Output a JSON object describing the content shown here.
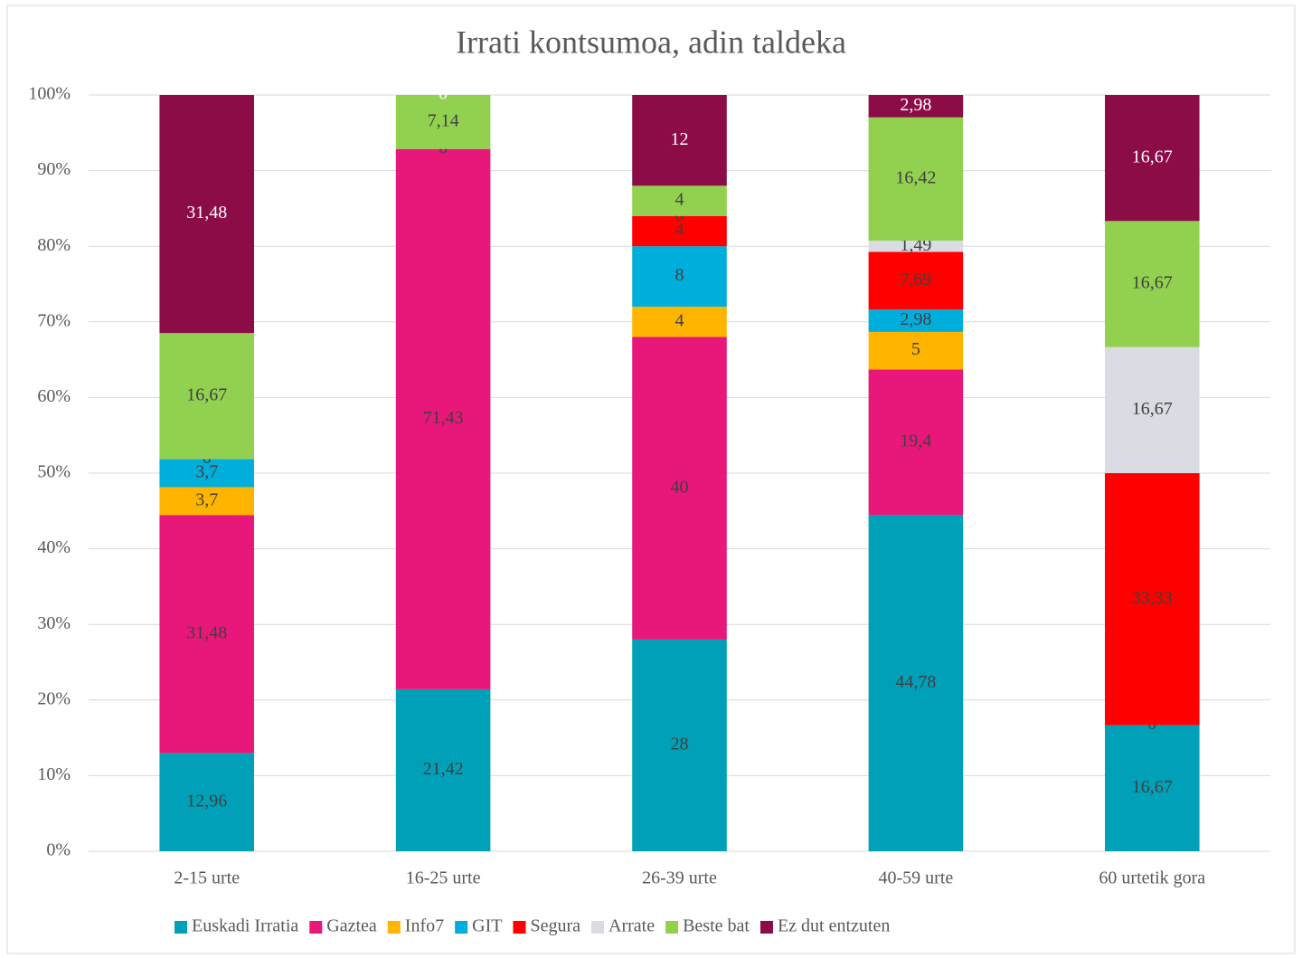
{
  "chart_data": {
    "type": "bar",
    "stacked": "percent",
    "title": "Irrati kontsumoa, adin taldeka",
    "categories": [
      "2-15 urte",
      "16-25 urte",
      "26-39 urte",
      "40-59 urte",
      "60 urtetik gora"
    ],
    "series": [
      {
        "name": "Euskadi Irratia",
        "color": "#00a0b8",
        "values": [
          12.96,
          21.42,
          28,
          44.78,
          16.67
        ],
        "value_labels": [
          "12,96",
          "21,42",
          "28",
          "44,78",
          "16,67"
        ]
      },
      {
        "name": "Gaztea",
        "color": "#e8177a",
        "values": [
          31.48,
          71.43,
          40,
          19.4,
          0
        ],
        "value_labels": [
          "31,48",
          "71,43",
          "40",
          "19,4",
          "0"
        ]
      },
      {
        "name": "Info7",
        "color": "#ffb400",
        "values": [
          3.7,
          null,
          4,
          5,
          null
        ],
        "value_labels": [
          "3,7",
          null,
          "4",
          "5",
          null
        ]
      },
      {
        "name": "GIT",
        "color": "#00aedb",
        "values": [
          3.7,
          null,
          8,
          2.98,
          null
        ],
        "value_labels": [
          "3,7",
          null,
          "8",
          "2,98",
          null
        ]
      },
      {
        "name": "Segura",
        "color": "#ff0000",
        "values": [
          0,
          0,
          4,
          7.69,
          33.33
        ],
        "value_labels": [
          "0",
          "0",
          "4",
          "7,69",
          "33,33"
        ]
      },
      {
        "name": "Arrate",
        "color": "#d9dde3",
        "values": [
          null,
          null,
          0,
          1.49,
          16.67
        ],
        "value_labels": [
          null,
          null,
          "0",
          "1,49",
          "16,67"
        ]
      },
      {
        "name": "Beste bat",
        "color": "#92d050",
        "values": [
          16.67,
          7.14,
          4,
          16.42,
          16.67
        ],
        "value_labels": [
          "16,67",
          "7,14",
          "4",
          "16,42",
          "16,67"
        ]
      },
      {
        "name": "Ez dut entzuten",
        "color": "#8b0c47",
        "values": [
          31.48,
          0,
          12,
          2.98,
          16.67
        ],
        "value_labels": [
          "31,48",
          "0",
          "12",
          "2,98",
          "16,67"
        ]
      }
    ],
    "ylim": [
      0,
      100
    ],
    "yticks": [
      {
        "value": 0,
        "label": "0%"
      },
      {
        "value": 10,
        "label": "10%"
      },
      {
        "value": 20,
        "label": "20%"
      },
      {
        "value": 30,
        "label": "30%"
      },
      {
        "value": 40,
        "label": "40%"
      },
      {
        "value": 50,
        "label": "50%"
      },
      {
        "value": 60,
        "label": "60%"
      },
      {
        "value": 70,
        "label": "70%"
      },
      {
        "value": 80,
        "label": "80%"
      },
      {
        "value": 90,
        "label": "90%"
      },
      {
        "value": 100,
        "label": "100%"
      }
    ],
    "grid": true,
    "legend": "bottom"
  }
}
